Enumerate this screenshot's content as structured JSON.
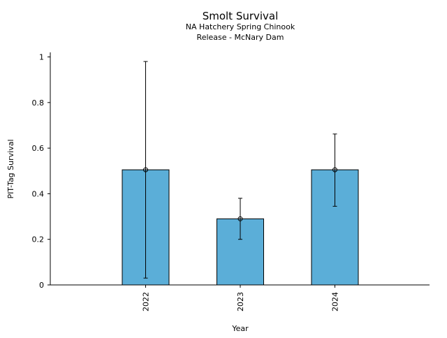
{
  "chart_data": {
    "type": "bar",
    "title": "Smolt Survival",
    "subtitle_lines": [
      "NA Hatchery Spring Chinook",
      "Release - McNary Dam"
    ],
    "xlabel": "Year",
    "ylabel": "PIT-Tag Survival",
    "categories": [
      "2022",
      "2023",
      "2024"
    ],
    "values": [
      0.505,
      0.29,
      0.505
    ],
    "error_low": [
      0.03,
      0.2,
      0.345
    ],
    "error_high": [
      0.98,
      0.38,
      0.662
    ],
    "ylim": [
      0,
      1.02
    ],
    "yticks": [
      0,
      0.2,
      0.4,
      0.6,
      0.8,
      1
    ],
    "ytick_labels": [
      "0",
      "0.2",
      "0.4",
      "0.6",
      "0.8",
      "1"
    ],
    "grid": false,
    "legend": "none",
    "colors": {
      "bar_fill": "#5BAED8",
      "bar_edge": "#000000",
      "marker": "#000000"
    }
  }
}
